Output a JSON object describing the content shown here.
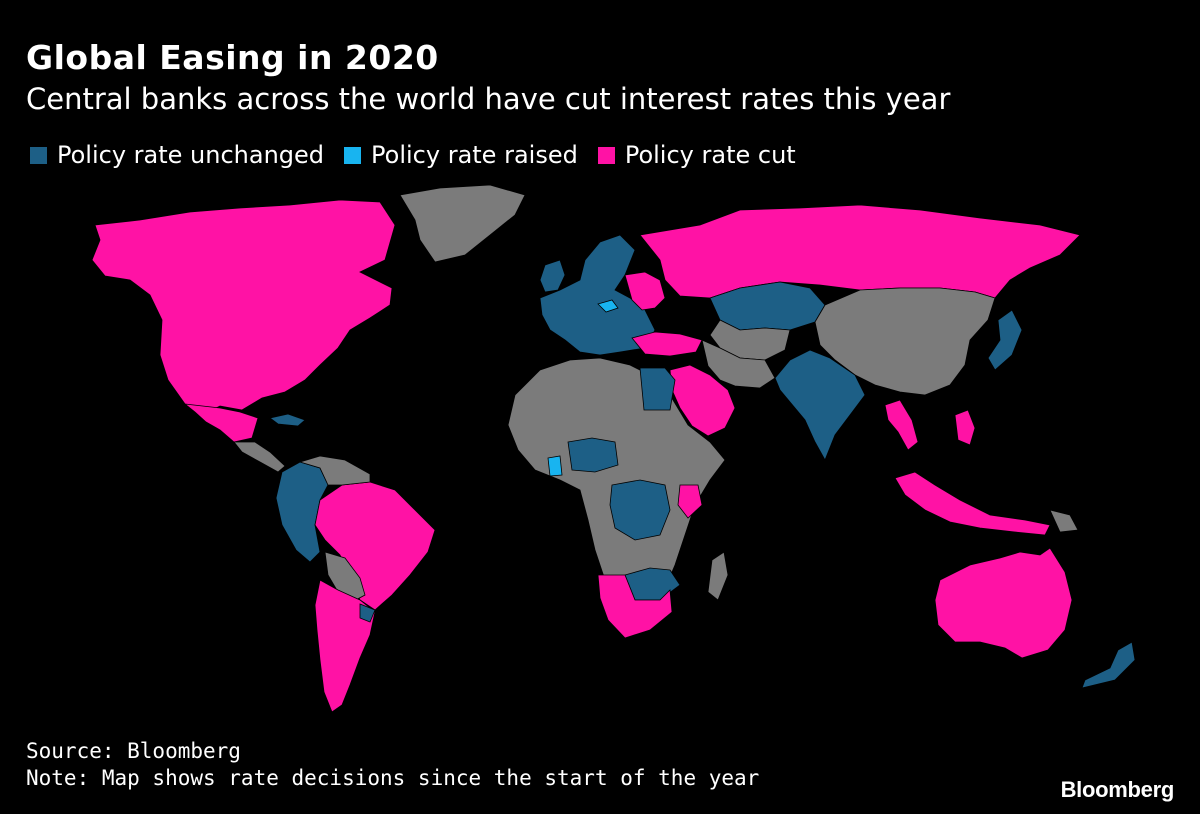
{
  "title": "Global Easing in 2020",
  "subtitle": "Central banks across the world have cut interest rates this year",
  "legend": [
    {
      "label": "Policy rate unchanged",
      "color": "#1d5f86"
    },
    {
      "label": "Policy rate raised",
      "color": "#18b4f0"
    },
    {
      "label": "Policy rate cut",
      "color": "#ff12a5"
    }
  ],
  "colors": {
    "unchanged": "#1d5f86",
    "raised": "#18b4f0",
    "cut": "#ff12a5",
    "no_data": "#7b7b7b",
    "background": "#000000"
  },
  "source": "Source: Bloomberg",
  "note": "Note: Map shows rate decisions since the start of the year",
  "logo": "Bloomberg"
}
